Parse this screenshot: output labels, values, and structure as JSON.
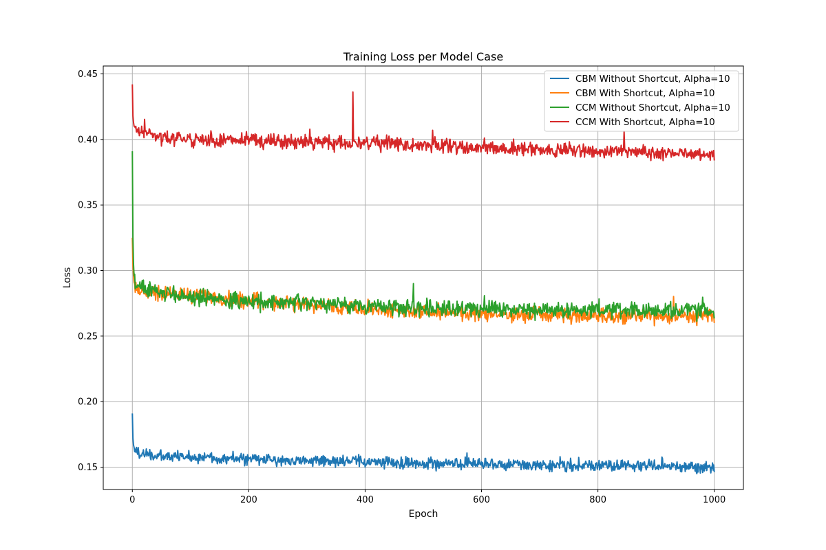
{
  "chart_data": {
    "type": "line",
    "title": "Training Loss per Model Case",
    "xlabel": "Epoch",
    "ylabel": "Loss",
    "xlim": [
      -50,
      1050
    ],
    "ylim": [
      0.133,
      0.456
    ],
    "xticks": [
      0,
      200,
      400,
      600,
      800,
      1000
    ],
    "xtick_labels": [
      "0",
      "200",
      "400",
      "600",
      "800",
      "1000"
    ],
    "yticks": [
      0.15,
      0.2,
      0.25,
      0.3,
      0.35,
      0.4,
      0.45
    ],
    "ytick_labels": [
      "0.15",
      "0.20",
      "0.25",
      "0.30",
      "0.35",
      "0.40",
      "0.45"
    ],
    "grid": true,
    "legend_position": "top-right",
    "epochs": 1000,
    "series": [
      {
        "name": "CBM Without Shortcut, Alpha=10",
        "color": "#1f77b4",
        "x": [
          0,
          1,
          2,
          3,
          5,
          10,
          20,
          50,
          100,
          200,
          300,
          400,
          500,
          600,
          700,
          800,
          900,
          1000
        ],
        "y": [
          0.191,
          0.172,
          0.167,
          0.165,
          0.163,
          0.161,
          0.16,
          0.158,
          0.158,
          0.156,
          0.155,
          0.154,
          0.153,
          0.152,
          0.152,
          0.151,
          0.151,
          0.15
        ],
        "noise": 0.0022,
        "spikes": [
          [
            30,
            0.0045
          ],
          [
            207,
            0.005
          ],
          [
            380,
            0.004
          ],
          [
            430,
            0.0045
          ],
          [
            575,
            0.005
          ],
          [
            735,
            0.004
          ],
          [
            830,
            0.0045
          ],
          [
            910,
            0.006
          ]
        ]
      },
      {
        "name": "CBM With Shortcut, Alpha=10",
        "color": "#ff7f0e",
        "x": [
          0,
          1,
          2,
          3,
          5,
          10,
          20,
          50,
          100,
          200,
          300,
          400,
          500,
          600,
          700,
          800,
          900,
          1000
        ],
        "y": [
          0.325,
          0.305,
          0.296,
          0.291,
          0.288,
          0.285,
          0.284,
          0.283,
          0.281,
          0.277,
          0.274,
          0.271,
          0.268,
          0.267,
          0.266,
          0.265,
          0.265,
          0.265
        ],
        "noise": 0.0028,
        "spikes": [
          [
            930,
            0.018
          ],
          [
            940,
            0.008
          ]
        ]
      },
      {
        "name": "CCM Without Shortcut, Alpha=10",
        "color": "#2ca02c",
        "x": [
          0,
          1,
          2,
          3,
          5,
          10,
          20,
          50,
          100,
          200,
          300,
          400,
          500,
          600,
          700,
          800,
          900,
          1000
        ],
        "y": [
          0.391,
          0.325,
          0.305,
          0.296,
          0.291,
          0.288,
          0.286,
          0.283,
          0.28,
          0.276,
          0.275,
          0.273,
          0.272,
          0.271,
          0.27,
          0.27,
          0.269,
          0.269
        ],
        "noise": 0.003,
        "spikes": [
          [
            483,
            0.015
          ],
          [
            605,
            0.01
          ],
          [
            365,
            0.009
          ],
          [
            180,
            0.008
          ],
          [
            980,
            0.01
          ]
        ]
      },
      {
        "name": "CCM With Shortcut, Alpha=10",
        "color": "#d62728",
        "x": [
          0,
          1,
          2,
          3,
          5,
          10,
          20,
          50,
          100,
          200,
          300,
          400,
          500,
          600,
          700,
          800,
          900,
          1000
        ],
        "y": [
          0.442,
          0.418,
          0.413,
          0.41,
          0.408,
          0.406,
          0.405,
          0.402,
          0.4,
          0.399,
          0.398,
          0.397,
          0.396,
          0.394,
          0.392,
          0.391,
          0.39,
          0.389
        ],
        "noise": 0.0026,
        "spikes": [
          [
            21,
            0.01
          ],
          [
            379,
            0.036
          ],
          [
            208,
            0.009
          ],
          [
            305,
            0.008
          ],
          [
            516,
            0.008
          ],
          [
            605,
            0.009
          ],
          [
            655,
            0.008
          ],
          [
            845,
            0.013
          ]
        ]
      }
    ]
  }
}
